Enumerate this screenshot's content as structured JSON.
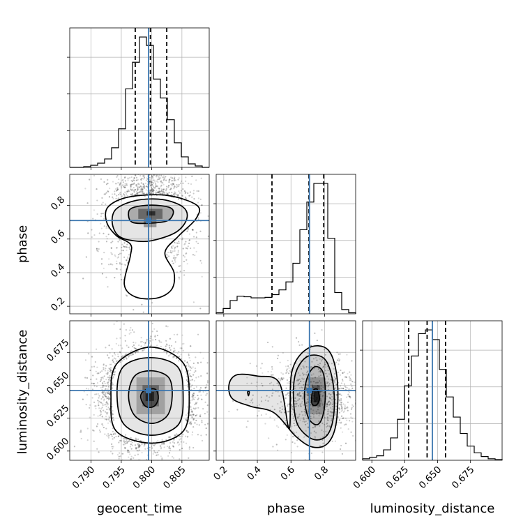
{
  "chart_data": {
    "type": "corner",
    "parameters": [
      "geocent_time",
      "phase",
      "luminosity_distance"
    ],
    "truths": {
      "geocent_time": 0.7995,
      "phase": 0.71,
      "luminosity_distance": 0.646
    },
    "ranges": {
      "geocent_time": [
        0.7865,
        0.8095
      ],
      "phase": [
        0.155,
        0.985
      ],
      "luminosity_distance": [
        0.593,
        0.699
      ]
    },
    "ticks": {
      "geocent_time": [
        "0.790",
        "0.795",
        "0.800",
        "0.805"
      ],
      "phase": [
        "0.2",
        "0.4",
        "0.6",
        "0.8"
      ],
      "luminosity_distance": [
        "0.600",
        "0.625",
        "0.650",
        "0.675"
      ]
    },
    "quantiles": {
      "geocent_time": [
        0.7973,
        0.7998,
        0.8025
      ],
      "phase": [
        0.487,
        0.707,
        0.795
      ],
      "luminosity_distance": [
        0.628,
        0.642,
        0.656
      ]
    },
    "histograms": [
      {
        "param": "geocent_time",
        "bin_edges": [
          0.7865,
          0.78765,
          0.7888,
          0.78995,
          0.7911,
          0.79225,
          0.7934,
          0.79455,
          0.7957,
          0.79685,
          0.798,
          0.79915,
          0.8003,
          0.80145,
          0.8026,
          0.80375,
          0.8049,
          0.80605,
          0.8072,
          0.80835,
          0.8095
        ],
        "counts": [
          0,
          0,
          1,
          3,
          6,
          12,
          28,
          55,
          112,
          150,
          186,
          174,
          126,
          99,
          68,
          35,
          15,
          5,
          2,
          0
        ]
      },
      {
        "param": "phase",
        "bin_edges": [
          0.155,
          0.1965,
          0.238,
          0.2795,
          0.321,
          0.3625,
          0.404,
          0.4455,
          0.487,
          0.5285,
          0.57,
          0.6115,
          0.653,
          0.6945,
          0.736,
          0.7775,
          0.819,
          0.8605,
          0.902,
          0.9435,
          0.985
        ],
        "counts": [
          2,
          10,
          25,
          33,
          32,
          30,
          30,
          31,
          36,
          45,
          60,
          95,
          158,
          210,
          245,
          245,
          142,
          40,
          8,
          2
        ]
      },
      {
        "param": "luminosity_distance",
        "bin_edges": [
          0.593,
          0.5983,
          0.6036,
          0.6089,
          0.6142,
          0.6195,
          0.6248,
          0.6301,
          0.6354,
          0.6407,
          0.646,
          0.6513,
          0.6566,
          0.6619,
          0.6672,
          0.6725,
          0.6778,
          0.6831,
          0.6884,
          0.6937,
          0.699
        ],
        "counts": [
          2,
          4,
          6,
          14,
          30,
          55,
          100,
          140,
          170,
          175,
          162,
          122,
          85,
          58,
          36,
          19,
          10,
          5,
          2,
          1
        ]
      }
    ],
    "panels_2d": [
      {
        "x": "geocent_time",
        "y": "phase",
        "peak": [
          0.7998,
          0.75
        ],
        "contours": [
          [
            [
              0.7968,
              0.7
            ],
            [
              0.7962,
              0.76
            ],
            [
              0.7972,
              0.79
            ],
            [
              0.8,
              0.802
            ],
            [
              0.8028,
              0.79
            ],
            [
              0.8036,
              0.76
            ],
            [
              0.8027,
              0.71
            ],
            [
              0.8,
              0.695
            ]
          ],
          [
            [
              0.7945,
              0.62
            ],
            [
              0.7935,
              0.7
            ],
            [
              0.7942,
              0.78
            ],
            [
              0.7975,
              0.83
            ],
            [
              0.8018,
              0.835
            ],
            [
              0.8052,
              0.79
            ],
            [
              0.8058,
              0.72
            ],
            [
              0.804,
              0.64
            ],
            [
              0.8,
              0.59
            ],
            [
              0.797,
              0.59
            ]
          ],
          [
            [
              0.7926,
              0.7
            ],
            [
              0.7928,
              0.79
            ],
            [
              0.7962,
              0.85
            ],
            [
              0.8025,
              0.86
            ],
            [
              0.8075,
              0.8
            ],
            [
              0.8073,
              0.72
            ],
            [
              0.8045,
              0.62
            ],
            [
              0.8022,
              0.52
            ],
            [
              0.8037,
              0.4
            ],
            [
              0.8033,
              0.3
            ],
            [
              0.8008,
              0.248
            ],
            [
              0.7973,
              0.256
            ],
            [
              0.7955,
              0.33
            ],
            [
              0.7965,
              0.5
            ],
            [
              0.7965,
              0.57
            ],
            [
              0.7942,
              0.62
            ]
          ]
        ],
        "density": [
          {
            "x": [
              0.7987,
              0.8008
            ],
            "y": [
              0.67,
              0.72
            ],
            "level": 0.55
          },
          {
            "x": [
              0.7978,
              0.8018
            ],
            "y": [
              0.72,
              0.78
            ],
            "level": 0.65
          },
          {
            "x": [
              0.7992,
              0.8006
            ],
            "y": [
              0.74,
              0.765
            ],
            "level": 0.95
          }
        ]
      },
      {
        "x": "geocent_time",
        "y": "luminosity_distance",
        "peak": [
          0.7995,
          0.641
        ],
        "contours": [
          [
            [
              0.799,
              0.634
            ],
            [
              0.7982,
              0.641
            ],
            [
              0.7988,
              0.646
            ],
            [
              0.8006,
              0.647
            ],
            [
              0.8011,
              0.64
            ],
            [
              0.8004,
              0.634
            ]
          ],
          [
            [
              0.7972,
              0.627
            ],
            [
              0.7962,
              0.642
            ],
            [
              0.7972,
              0.657
            ],
            [
              0.8,
              0.661
            ],
            [
              0.8028,
              0.656
            ],
            [
              0.8034,
              0.642
            ],
            [
              0.8026,
              0.627
            ],
            [
              0.8,
              0.621
            ]
          ],
          [
            [
              0.7955,
              0.62
            ],
            [
              0.7943,
              0.642
            ],
            [
              0.7953,
              0.664
            ],
            [
              0.7998,
              0.671
            ],
            [
              0.8043,
              0.664
            ],
            [
              0.8052,
              0.642
            ],
            [
              0.8044,
              0.62
            ],
            [
              0.8,
              0.612
            ]
          ],
          [
            [
              0.7942,
              0.615
            ],
            [
              0.7933,
              0.64
            ],
            [
              0.7942,
              0.666
            ],
            [
              0.7998,
              0.679
            ],
            [
              0.8052,
              0.667
            ],
            [
              0.8062,
              0.64
            ],
            [
              0.8052,
              0.615
            ],
            [
              0.8,
              0.606
            ]
          ]
        ],
        "density": [
          {
            "x": [
              0.7975,
              0.8022
            ],
            "y": [
              0.628,
              0.656
            ],
            "level": 0.35
          },
          {
            "x": [
              0.7985,
              0.8012
            ],
            "y": [
              0.634,
              0.65
            ],
            "level": 0.6
          },
          {
            "x": [
              0.799,
              0.8004
            ],
            "y": [
              0.638,
              0.645
            ],
            "level": 0.92
          }
        ]
      },
      {
        "x": "phase",
        "y": "luminosity_distance",
        "peak": [
          0.75,
          0.641
        ],
        "contours": [
          [
            [
              0.725,
              0.636
            ],
            [
              0.728,
              0.645
            ],
            [
              0.755,
              0.647
            ],
            [
              0.77,
              0.64
            ],
            [
              0.752,
              0.635
            ]
          ],
          [
            [
              0.705,
              0.625
            ],
            [
              0.68,
              0.64
            ],
            [
              0.695,
              0.655
            ],
            [
              0.74,
              0.664
            ],
            [
              0.79,
              0.66
            ],
            [
              0.805,
              0.643
            ],
            [
              0.79,
              0.627
            ],
            [
              0.755,
              0.62
            ]
          ],
          [
            [
              0.64,
              0.62
            ],
            [
              0.615,
              0.64
            ],
            [
              0.63,
              0.66
            ],
            [
              0.7,
              0.672
            ],
            [
              0.8,
              0.67
            ],
            [
              0.85,
              0.652
            ],
            [
              0.855,
              0.628
            ],
            [
              0.815,
              0.612
            ],
            [
              0.73,
              0.609
            ]
          ],
          [
            [
              0.59,
              0.617
            ],
            [
              0.605,
              0.66
            ],
            [
              0.7,
              0.678
            ],
            [
              0.82,
              0.677
            ],
            [
              0.875,
              0.655
            ],
            [
              0.87,
              0.622
            ],
            [
              0.82,
              0.606
            ],
            [
              0.73,
              0.603
            ],
            [
              0.63,
              0.611
            ],
            [
              0.5,
              0.629
            ],
            [
              0.36,
              0.634
            ],
            [
              0.25,
              0.64
            ],
            [
              0.232,
              0.651
            ],
            [
              0.28,
              0.658
            ],
            [
              0.4,
              0.657
            ],
            [
              0.53,
              0.652
            ]
          ],
          [
            [
              0.347,
              0.642
            ],
            [
              0.342,
              0.645
            ],
            [
              0.352,
              0.645
            ]
          ]
        ],
        "density": [
          {
            "x": [
              0.7,
              0.8
            ],
            "y": [
              0.628,
              0.656
            ],
            "level": 0.35
          },
          {
            "x": [
              0.725,
              0.775
            ],
            "y": [
              0.634,
              0.65
            ],
            "level": 0.6
          },
          {
            "x": [
              0.735,
              0.765
            ],
            "y": [
              0.637,
              0.646
            ],
            "level": 0.92
          }
        ]
      }
    ],
    "xlabels": [
      "geocent_time",
      "phase",
      "luminosity_distance"
    ],
    "ylabels": [
      "phase",
      "luminosity_distance"
    ],
    "grid": true,
    "colors": {
      "truth": "#3b76af",
      "lines": "#000000",
      "grid": "#b0b0b0",
      "samples": "#808080"
    }
  }
}
